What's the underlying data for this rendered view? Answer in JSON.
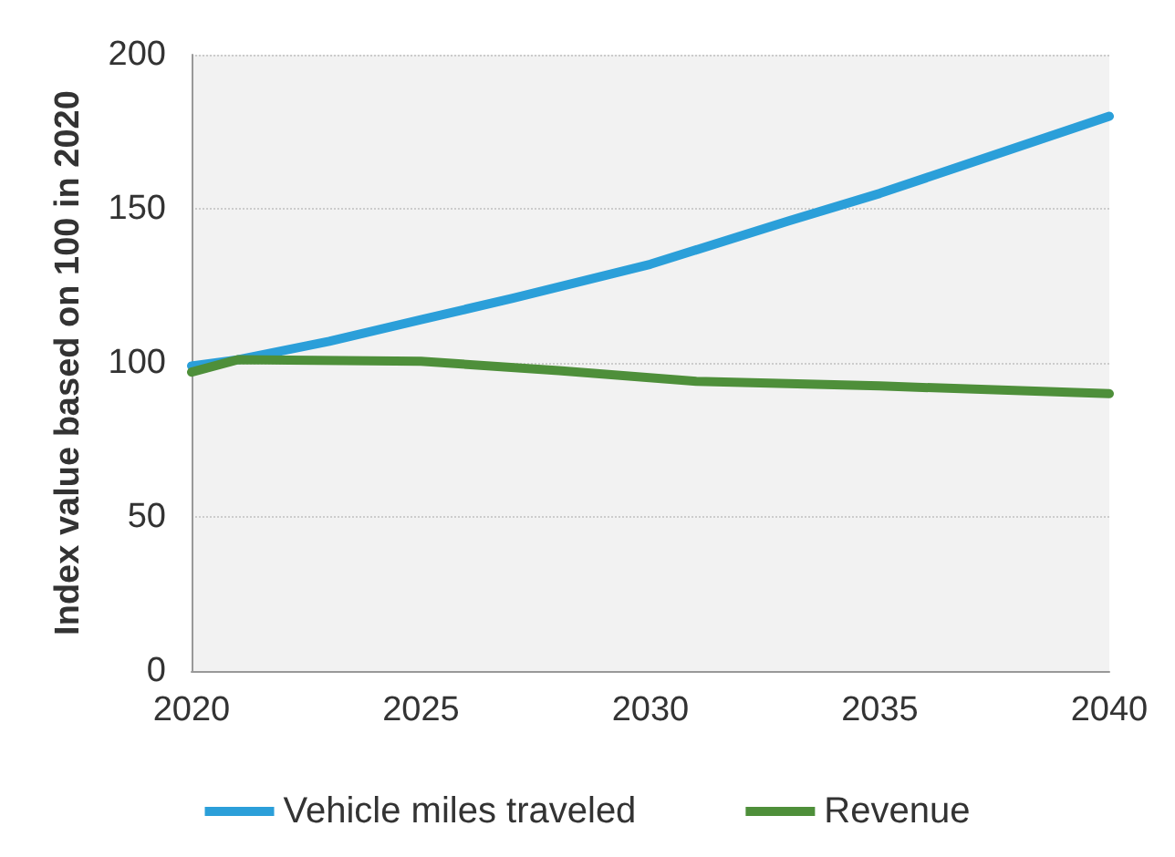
{
  "chart_data": {
    "type": "line",
    "ylabel": "Index value based on 100 in 2020",
    "xlim": [
      2020,
      2040
    ],
    "xticks": [
      2020,
      2025,
      2030,
      2035,
      2040
    ],
    "ylim": [
      0,
      200
    ],
    "yticks": [
      0,
      50,
      100,
      150,
      200
    ],
    "grid": "y",
    "legend": "bottom",
    "marker": "none",
    "line_style": "solid",
    "series": [
      {
        "name": "Vehicle miles traveled",
        "color": "#2b9fd9",
        "x": [
          2020,
          2021,
          2023,
          2025,
          2027,
          2030,
          2033,
          2035,
          2037,
          2040
        ],
        "values": [
          99,
          101,
          107,
          114,
          121,
          132,
          146,
          155,
          165,
          180
        ]
      },
      {
        "name": "Revenue",
        "color": "#4e8f3a",
        "x": [
          2020,
          2021,
          2025,
          2028,
          2031,
          2035,
          2040
        ],
        "values": [
          97,
          101,
          100.5,
          97.5,
          94,
          92.5,
          90
        ]
      }
    ]
  }
}
